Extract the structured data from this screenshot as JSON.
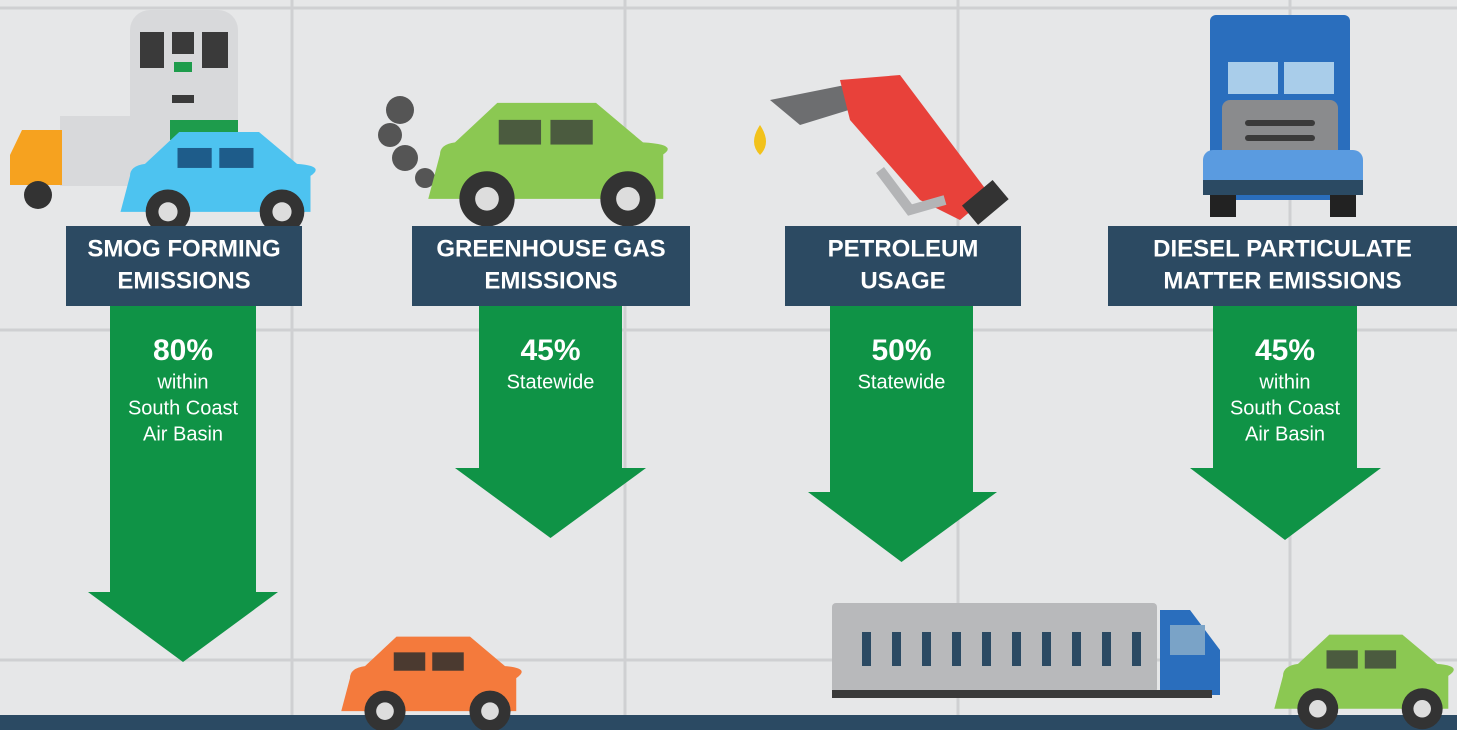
{
  "panels": [
    {
      "title_lines": [
        "SMOG FORMING",
        "EMISSIONS"
      ],
      "percent": "80%",
      "detail_lines": [
        "within",
        "South Coast",
        "Air Basin"
      ]
    },
    {
      "title_lines": [
        "GREENHOUSE GAS",
        "EMISSIONS"
      ],
      "percent": "45%",
      "detail_lines": [
        "Statewide"
      ]
    },
    {
      "title_lines": [
        "PETROLEUM",
        "USAGE"
      ],
      "percent": "50%",
      "detail_lines": [
        "Statewide"
      ]
    },
    {
      "title_lines": [
        "DIESEL PARTICULATE",
        "MATTER EMISSIONS"
      ],
      "percent": "45%",
      "detail_lines": [
        "within",
        "South Coast",
        "Air Basin"
      ]
    }
  ]
}
